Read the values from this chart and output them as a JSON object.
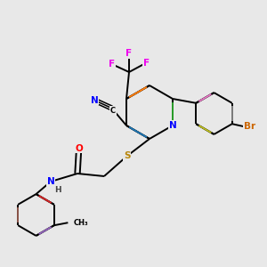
{
  "bg_color": "#e8e8e8",
  "bond_color": "#000000",
  "atom_colors": {
    "N": "#0000ff",
    "O": "#ff0000",
    "S": "#b8860b",
    "F": "#ee00ee",
    "Br": "#cc6600",
    "C": "#000000",
    "H": "#444444"
  },
  "font_size": 7.5,
  "line_width": 1.4
}
